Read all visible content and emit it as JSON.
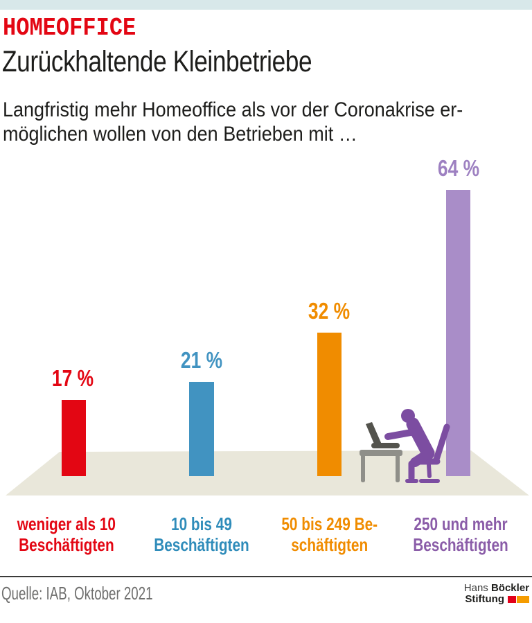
{
  "page": {
    "top_strip_color": "#d8e8ea",
    "background": "#ffffff"
  },
  "header": {
    "kicker": "HOMEOFFICE",
    "kicker_color": "#e30613",
    "title": "Zurückhaltende Kleinbetriebe",
    "subtitle_line1": "Langfristig mehr Homeoffice als vor der Coronakrise er-",
    "subtitle_line2": "möglichen wollen von den Betrieben mit …"
  },
  "chart_data": {
    "type": "bar",
    "title": "Zurückhaltende Kleinbetriebe",
    "subtitle": "Langfristig mehr Homeoffice als vor der Coronakrise ermöglichen wollen von den Betrieben mit …",
    "unit": "%",
    "ylim": [
      0,
      70
    ],
    "grid": false,
    "legend": "none",
    "categories": [
      "weniger als 10 Beschäftigten",
      "10 bis 49 Beschäftigten",
      "50 bis 249 Beschäftigten",
      "250 und mehr Beschäftigten"
    ],
    "values": [
      17,
      21,
      32,
      64
    ],
    "bars": [
      {
        "category_line1": "weniger als 10",
        "category_line2": "Beschäftigten",
        "value": 17,
        "value_label": "17 %",
        "bar_color": "#e30613",
        "value_color": "#e30613",
        "label_color": "#e30613"
      },
      {
        "category_line1": "10 bis 49",
        "category_line2": "Beschäftigten",
        "value": 21,
        "value_label": "21 %",
        "bar_color": "#4193c1",
        "value_color": "#4193c1",
        "label_color": "#2f8cba"
      },
      {
        "category_line1": "50 bis 249 Be-",
        "category_line2": "schäftigten",
        "value": 32,
        "value_label": "32 %",
        "bar_color": "#f08c00",
        "value_color": "#f08c00",
        "label_color": "#f08c00"
      },
      {
        "category_line1": "250 und mehr",
        "category_line2": "Beschäftigten",
        "value": 64,
        "value_label": "64 %",
        "bar_color": "#a98dc8",
        "value_color": "#9d80c1",
        "label_color": "#8a5ca8"
      }
    ],
    "floor_color": "#e9e7da",
    "illustration": "person-working-at-desk-with-laptop",
    "illustration_colors": {
      "person": "#7c4da1",
      "furniture": "#8f8f89",
      "laptop": "#53534d"
    }
  },
  "footer": {
    "source": "Quelle: IAB, Oktober 2021",
    "divider_color": "#3a3a39",
    "logo": {
      "name_regular": "Hans",
      "name_bold": "Böckler",
      "line2": "Stiftung",
      "block_colors": [
        "#e2001a",
        "#f59c00"
      ]
    }
  }
}
